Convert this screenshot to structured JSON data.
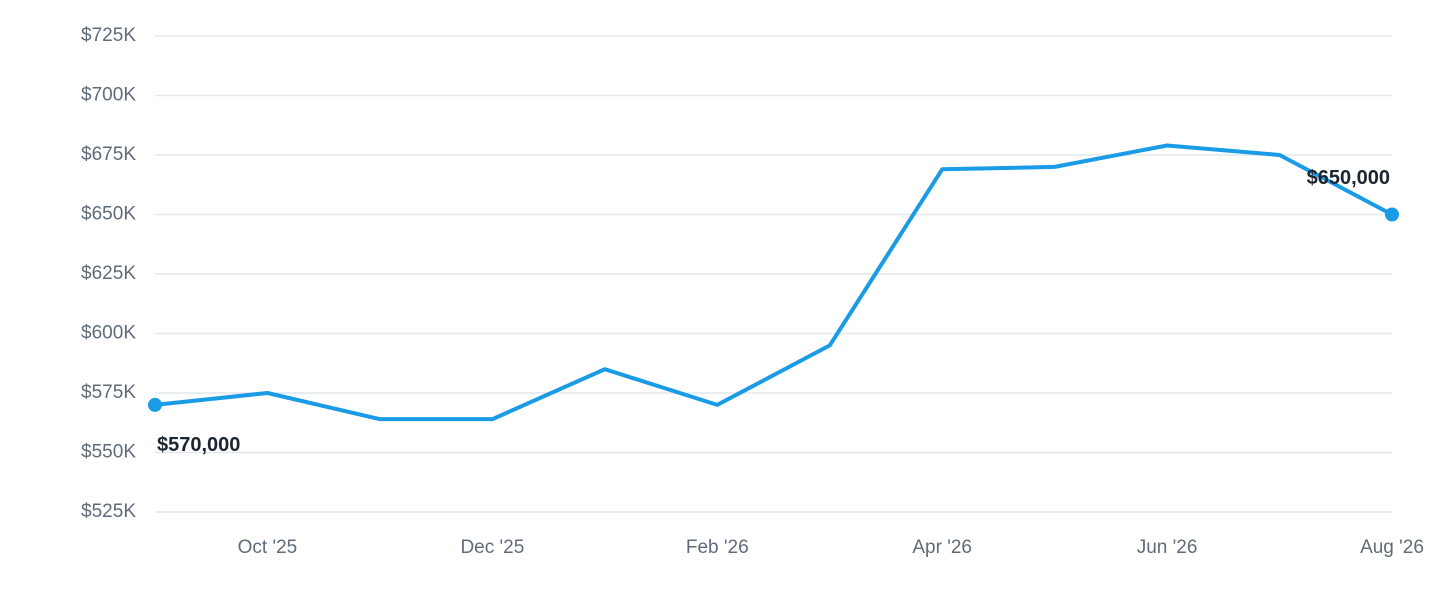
{
  "chart_data": {
    "type": "line",
    "categories": [
      null,
      "Oct '25",
      null,
      "Dec '25",
      null,
      "Feb '26",
      null,
      "Apr '26",
      null,
      "Jun '26",
      null,
      "Aug '26"
    ],
    "series": [
      {
        "color": "#1a9be6",
        "values": [
          570000,
          575000,
          564000,
          564000,
          585000,
          570000,
          595000,
          669000,
          670000,
          679000,
          675000,
          650000
        ],
        "value_labels": [
          "$570,000",
          null,
          null,
          null,
          null,
          null,
          null,
          null,
          null,
          null,
          null,
          "$650,000"
        ]
      }
    ],
    "ylim": [
      525000,
      725000
    ],
    "yticks": [
      {
        "value": 525000,
        "label": "$525K"
      },
      {
        "value": 550000,
        "label": "$550K"
      },
      {
        "value": 575000,
        "label": "$575K"
      },
      {
        "value": 600000,
        "label": "$600K"
      },
      {
        "value": 625000,
        "label": "$625K"
      },
      {
        "value": 650000,
        "label": "$650K"
      },
      {
        "value": 675000,
        "label": "$675K"
      },
      {
        "value": 700000,
        "label": "$700K"
      },
      {
        "value": 725000,
        "label": "$725K"
      }
    ],
    "grid": true
  }
}
